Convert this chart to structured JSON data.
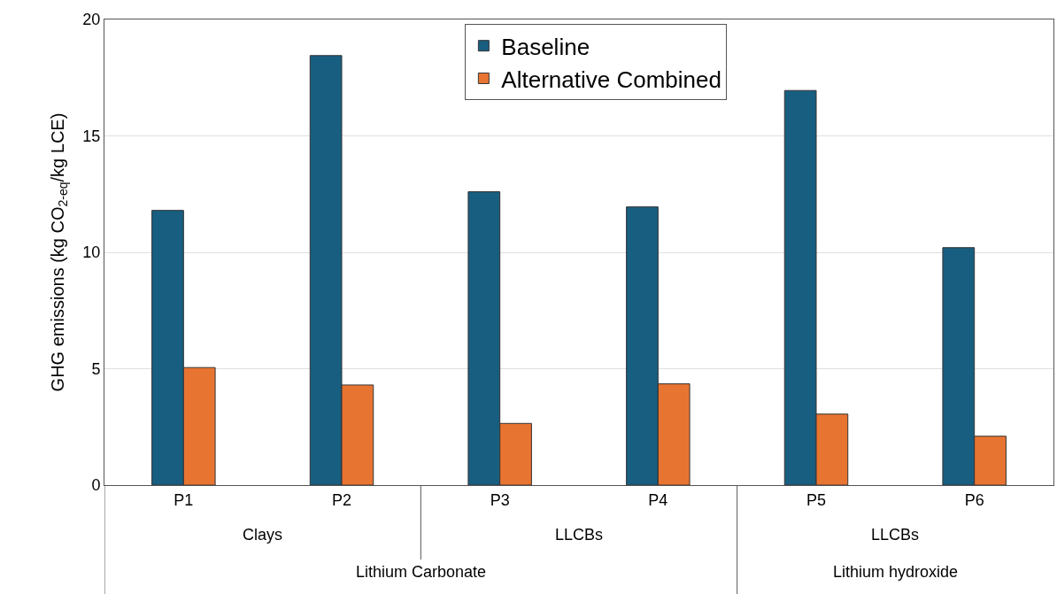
{
  "chart_data": {
    "type": "bar",
    "categories": [
      "P1",
      "P2",
      "P3",
      "P4",
      "P5",
      "P6"
    ],
    "series": [
      {
        "name": "Baseline",
        "color": "#185e80",
        "values": [
          11.8,
          18.45,
          12.6,
          11.95,
          16.95,
          10.2
        ]
      },
      {
        "name": "Alternative Combined",
        "color": "#e87432",
        "values": [
          5.05,
          4.3,
          2.65,
          4.35,
          3.05,
          2.1
        ]
      }
    ],
    "ylabel": "GHG emissions (kg CO$_{2-eq}$/kg LCE)",
    "ylim": [
      0,
      20
    ],
    "yticks": [
      0,
      5,
      10,
      15,
      20
    ],
    "annotations": [
      "Clays",
      "LLCBs",
      "LLCBs",
      "Lithium Carbonate",
      "Lithium hydroxide"
    ],
    "grid": "y",
    "legend": "top"
  }
}
